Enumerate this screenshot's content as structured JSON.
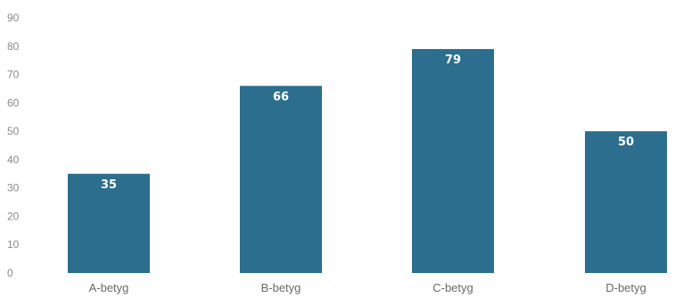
{
  "chart_data": {
    "type": "bar",
    "categories": [
      "A-betyg",
      "B-betyg",
      "C-betyg",
      "D-betyg"
    ],
    "values": [
      35,
      66,
      79,
      50
    ],
    "data_labels": [
      "35",
      "66",
      "79",
      "50"
    ],
    "ylim": [
      0,
      90
    ],
    "yticks": [
      0,
      10,
      20,
      30,
      40,
      50,
      60,
      70,
      80,
      90
    ],
    "ytick_labels": [
      "0",
      "10",
      "20",
      "30",
      "40",
      "50",
      "60",
      "70",
      "80",
      "90"
    ],
    "grid": false,
    "legend": "none",
    "bar_color": "#2c6e8e"
  }
}
